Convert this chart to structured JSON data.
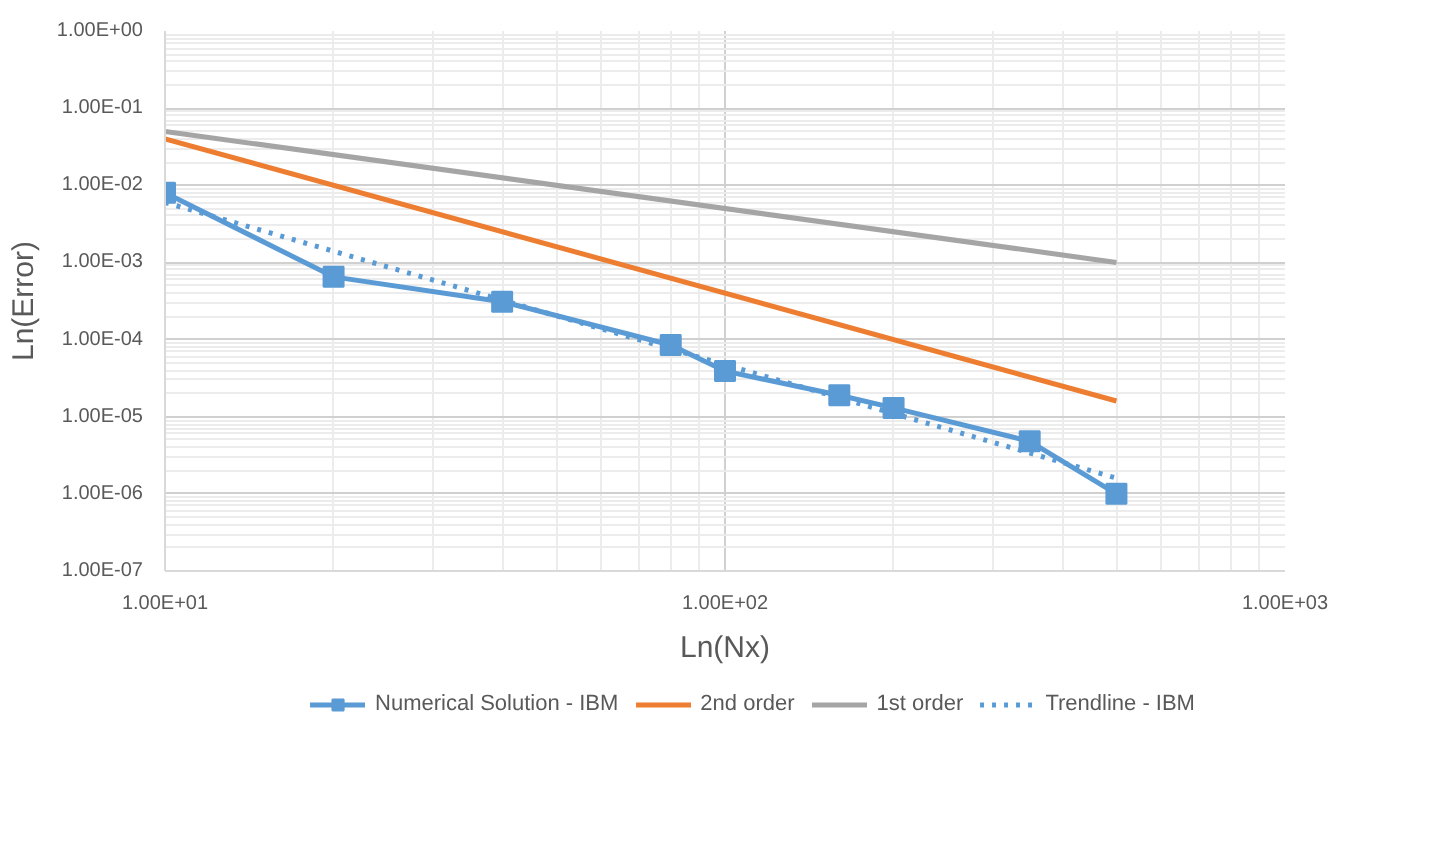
{
  "chart_data": {
    "type": "line",
    "xlabel": "Ln(Nx)",
    "ylabel": "Ln(Error)",
    "log": "xy",
    "grid": true,
    "legend": "bottom",
    "xlim": [
      10,
      1000
    ],
    "ylim": [
      1e-07,
      1
    ],
    "xticks": [
      {
        "value": 10,
        "label": "1.00E+01"
      },
      {
        "value": 100,
        "label": "1.00E+02"
      },
      {
        "value": 1000,
        "label": "1.00E+03"
      }
    ],
    "yticks": [
      {
        "value": 1e-07,
        "label": "1.00E-07"
      },
      {
        "value": 1e-06,
        "label": "1.00E-06"
      },
      {
        "value": 1e-05,
        "label": "1.00E-05"
      },
      {
        "value": 0.0001,
        "label": "1.00E-04"
      },
      {
        "value": 0.001,
        "label": "1.00E-03"
      },
      {
        "value": 0.01,
        "label": "1.00E-02"
      },
      {
        "value": 0.1,
        "label": "1.00E-01"
      },
      {
        "value": 1,
        "label": "1.00E+00"
      }
    ],
    "series": [
      {
        "name": "Numerical Solution - IBM",
        "color": "#5b9bd5",
        "marker": "square",
        "line_style": "solid",
        "x": [
          10,
          20,
          40,
          80,
          100,
          160,
          200,
          350,
          500
        ],
        "values": [
          0.008,
          0.00065,
          0.00031,
          8.5e-05,
          3.9e-05,
          1.9e-05,
          1.3e-05,
          4.8e-06,
          1e-06
        ]
      },
      {
        "name": "2nd order",
        "color": "#ed7d31",
        "marker": "none",
        "line_style": "solid",
        "x": [
          10,
          500
        ],
        "values": [
          0.04,
          1.6e-05
        ]
      },
      {
        "name": "1st order",
        "color": "#a5a5a5",
        "marker": "none",
        "line_style": "solid",
        "x": [
          10,
          500
        ],
        "values": [
          0.05,
          0.001
        ]
      },
      {
        "name": "Trendline - IBM",
        "color": "#5b9bd5",
        "marker": "none",
        "line_style": "dotted",
        "x": [
          10,
          500
        ],
        "values": [
          0.006,
          1.6e-06
        ]
      }
    ]
  }
}
